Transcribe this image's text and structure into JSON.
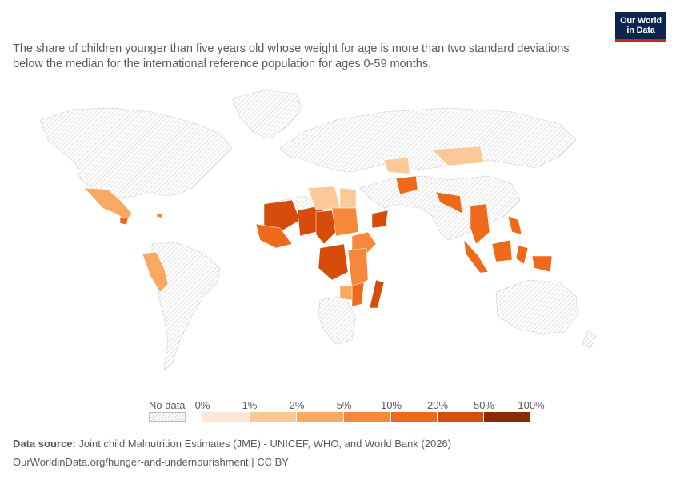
{
  "header": {
    "subtitle": "The share of children younger than five years old whose weight for age is more than two standard deviations below the median for the international reference population for ages 0-59 months."
  },
  "logo": {
    "line1": "Our World",
    "line2": "in Data"
  },
  "legend": {
    "no_data_label": "No data",
    "ticks": [
      "0%",
      "1%",
      "2%",
      "5%",
      "10%",
      "20%",
      "50%",
      "100%"
    ],
    "bins": [
      {
        "from": "0%",
        "to": "1%",
        "color": "#fde8d8"
      },
      {
        "from": "1%",
        "to": "2%",
        "color": "#fbc898"
      },
      {
        "from": "2%",
        "to": "5%",
        "color": "#f9a862"
      },
      {
        "from": "5%",
        "to": "10%",
        "color": "#f5883a"
      },
      {
        "from": "10%",
        "to": "20%",
        "color": "#ee6a1a"
      },
      {
        "from": "20%",
        "to": "50%",
        "color": "#d64c0a"
      },
      {
        "from": "50%",
        "to": "100%",
        "color": "#8b2a08"
      }
    ]
  },
  "map": {
    "no_data_color": "#e6e6e6",
    "regions": [
      {
        "name": "Mexico",
        "bin": "2%-5%"
      },
      {
        "name": "Guatemala",
        "bin": "10%-20%"
      },
      {
        "name": "Haiti",
        "bin": "5%-10%"
      },
      {
        "name": "Peru",
        "bin": "2%-5%"
      },
      {
        "name": "Bolivia",
        "bin": "2%-5%"
      },
      {
        "name": "Ecuador",
        "bin": "2%-5%"
      },
      {
        "name": "Mali",
        "bin": "20%-50%"
      },
      {
        "name": "Niger",
        "bin": "20%-50%"
      },
      {
        "name": "Chad",
        "bin": "20%-50%"
      },
      {
        "name": "Nigeria",
        "bin": "10%-20%"
      },
      {
        "name": "Sudan",
        "bin": "10%-20%"
      },
      {
        "name": "Libya",
        "bin": "2%-5%"
      },
      {
        "name": "Egypt",
        "bin": "2%-5%"
      },
      {
        "name": "Yemen",
        "bin": "20%-50%"
      },
      {
        "name": "Ethiopia",
        "bin": "10%-20%"
      },
      {
        "name": "Somalia",
        "bin": "10%-20%"
      },
      {
        "name": "DR Congo",
        "bin": "20%-50%"
      },
      {
        "name": "Tanzania",
        "bin": "10%-20%"
      },
      {
        "name": "Mozambique",
        "bin": "10%-20%"
      },
      {
        "name": "Madagascar",
        "bin": "20%-50%"
      },
      {
        "name": "Zimbabwe",
        "bin": "5%-10%"
      },
      {
        "name": "Afghanistan",
        "bin": "10%-20%"
      },
      {
        "name": "Uzbekistan",
        "bin": "2%-5%"
      },
      {
        "name": "Mongolia",
        "bin": "1%-2%"
      },
      {
        "name": "Bangladesh",
        "bin": "10%-20%"
      },
      {
        "name": "Myanmar",
        "bin": "10%-20%"
      },
      {
        "name": "Cambodia",
        "bin": "10%-20%"
      },
      {
        "name": "Laos",
        "bin": "10%-20%"
      },
      {
        "name": "Indonesia",
        "bin": "10%-20%"
      },
      {
        "name": "Philippines",
        "bin": "10%-20%"
      },
      {
        "name": "Papua New Guinea",
        "bin": "10%-20%"
      }
    ]
  },
  "footer": {
    "source_label": "Data source:",
    "source_text": " Joint child Malnutrition Estimates (JME) - UNICEF, WHO, and World Bank (2026)",
    "url": "OurWorldinData.org/hunger-and-undernourishment | CC BY"
  }
}
